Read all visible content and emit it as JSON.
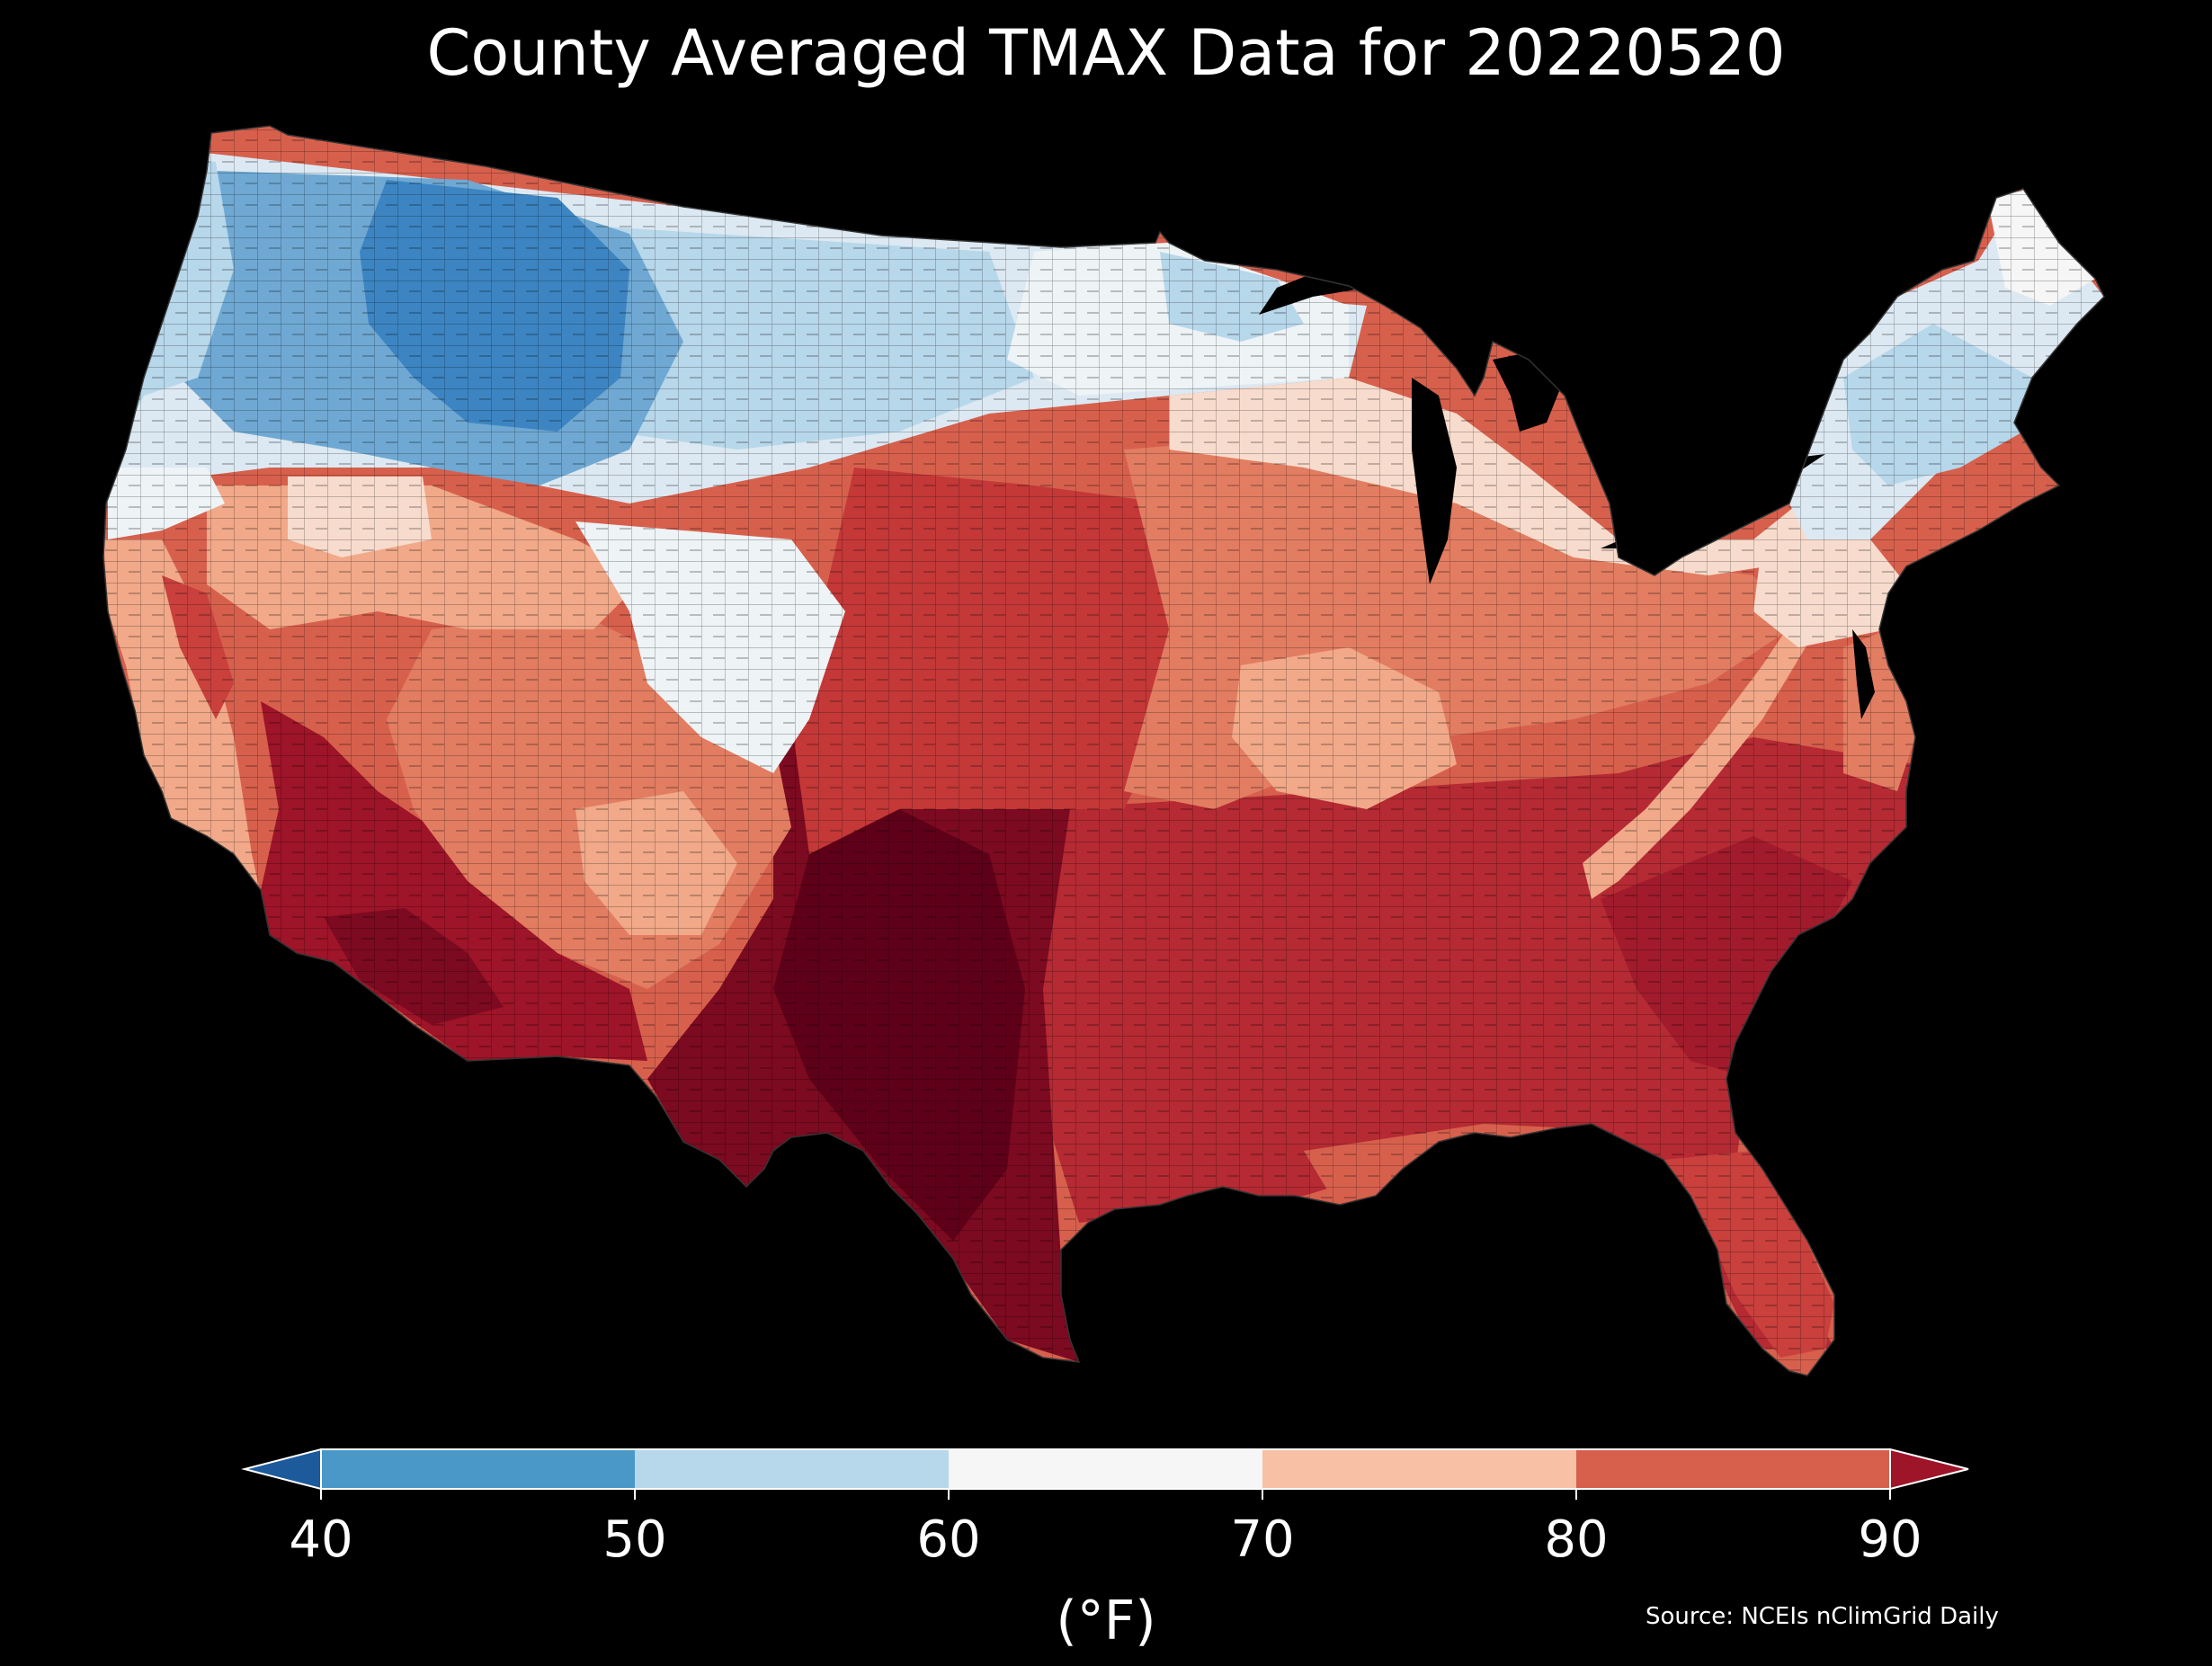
{
  "title": "County Averaged TMAX Data for 20220520",
  "colorbar": {
    "ticks": [
      "40",
      "50",
      "60",
      "70",
      "80",
      "90"
    ],
    "unit": "(°F)",
    "colors": {
      "below_40": "#1c5a9c",
      "40_50": "#4a98c8",
      "50_60": "#b7d7ea",
      "60_70": "#f6f6f6",
      "70_80": "#f8c0a4",
      "80_90": "#d7604d",
      "above_90": "#9e1428"
    }
  },
  "source": "Source: NCEIs nClimGrid Daily",
  "palette": {
    "deep_blue": "#3d85c2",
    "mid_blue": "#6fa9d3",
    "light_blue": "#b7d7ea",
    "pale_blue": "#dde9f2",
    "near_white": "#eef3f6",
    "pale_peach": "#f7dccd",
    "peach": "#f1a989",
    "salmon": "#e27d62",
    "red": "#c9403d",
    "dark_red": "#a91d2d",
    "maroon": "#7c0a20",
    "deep_maroon": "#5f0019"
  }
}
